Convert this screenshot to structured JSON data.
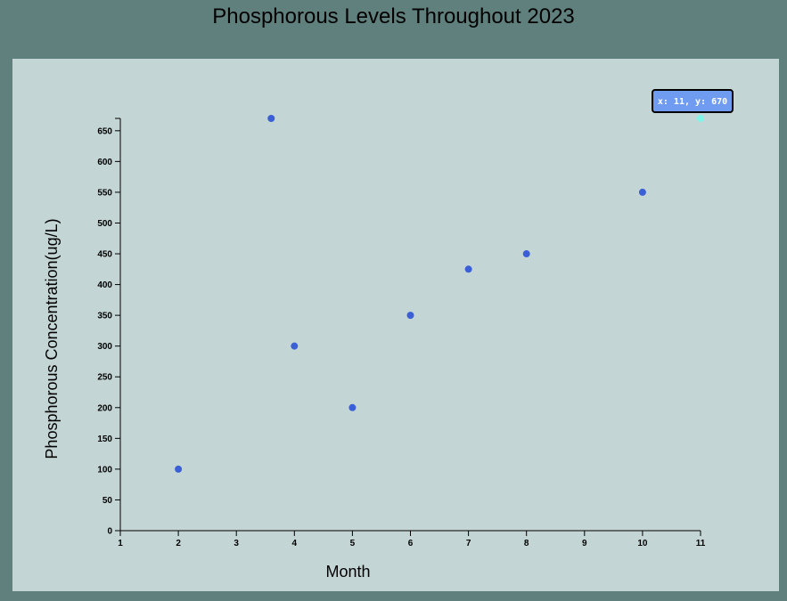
{
  "page": {
    "title": "Phosphorous Levels Throughout 2023"
  },
  "chart_data": {
    "type": "scatter",
    "title": "Phosphorous Levels Throughout 2023",
    "xlabel": "Month",
    "ylabel": "Phosphorous Concentration(ug/L)",
    "xlim": [
      1,
      11
    ],
    "ylim": [
      0,
      670
    ],
    "xticks": [
      1,
      2,
      3,
      4,
      5,
      6,
      7,
      8,
      9,
      10,
      11
    ],
    "yticks": [
      0,
      50,
      100,
      150,
      200,
      250,
      300,
      350,
      400,
      450,
      500,
      550,
      600,
      650
    ],
    "points": [
      {
        "x": 2,
        "y": 100
      },
      {
        "x": 3.6,
        "y": 670
      },
      {
        "x": 4,
        "y": 300
      },
      {
        "x": 5,
        "y": 200
      },
      {
        "x": 6,
        "y": 350
      },
      {
        "x": 7,
        "y": 425
      },
      {
        "x": 8,
        "y": 450
      },
      {
        "x": 10,
        "y": 550
      },
      {
        "x": 11,
        "y": 670,
        "highlighted": true
      }
    ],
    "tooltip": {
      "text": "x: 11, y: 670"
    },
    "colors": {
      "point": "#3b5fd6",
      "highlight": "#7ff5e8",
      "tooltip_bg": "#6f9bf0",
      "tooltip_border": "#000000",
      "panel_bg": "#c3d6d5",
      "page_bg": "#5f807d"
    },
    "grid": false,
    "legend": "none"
  }
}
